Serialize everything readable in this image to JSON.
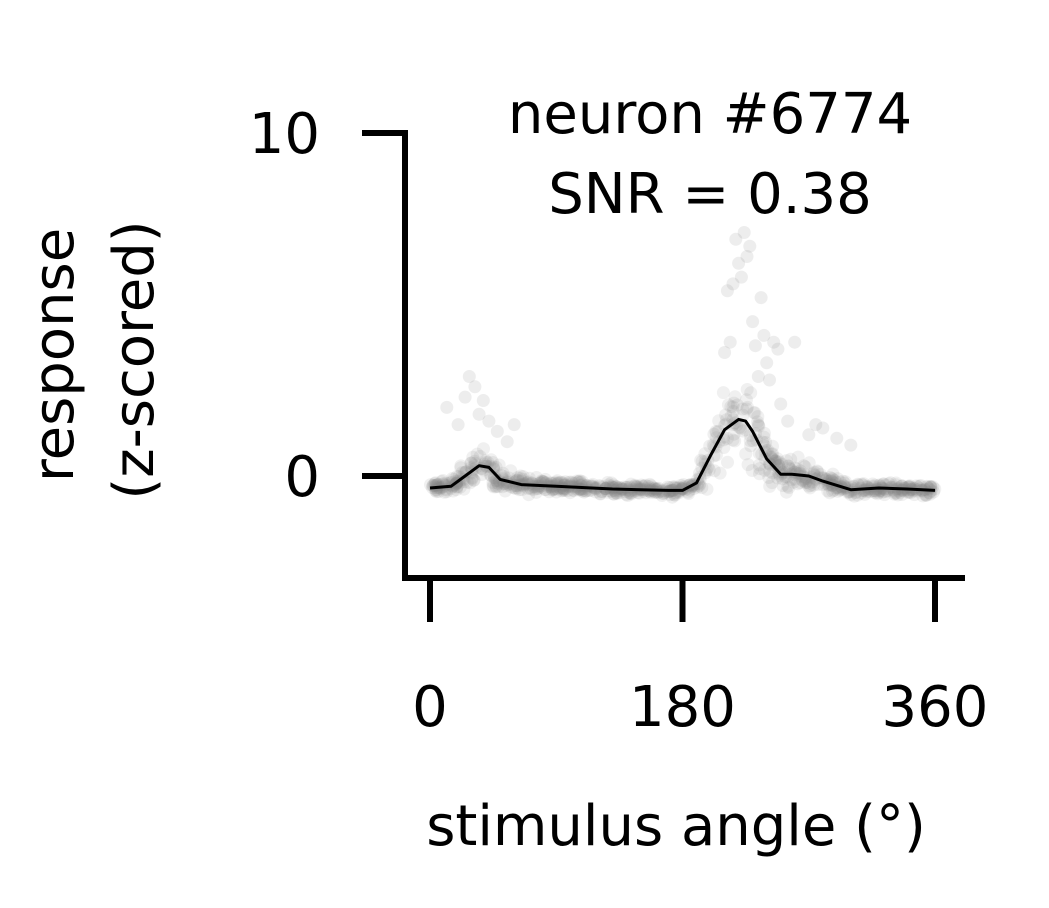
{
  "chart_data": {
    "type": "scatter",
    "title": "neuron #6774",
    "subtitle": "SNR = 0.38",
    "xlabel": "stimulus angle ($^\\circ$)",
    "xlabel_display": "stimulus angle (°)",
    "ylabel": [
      "response",
      "(z-scored)"
    ],
    "xlim": [
      -8,
      372
    ],
    "ylim": [
      -3,
      10
    ],
    "xticks": [
      0,
      180,
      360
    ],
    "xtick_labels": [
      "0",
      "180",
      "360"
    ],
    "yticks": [
      0,
      10
    ],
    "ytick_labels": [
      "0",
      "10"
    ],
    "grid": false,
    "legend": "none",
    "colors": {
      "points": "#808080",
      "curve": "#000000",
      "axes": "#000000"
    },
    "mean_curve": {
      "x": [
        0,
        15,
        25,
        35,
        42,
        50,
        65,
        90,
        130,
        170,
        180,
        190,
        200,
        210,
        220,
        225,
        230,
        240,
        250,
        258,
        270,
        280,
        300,
        320,
        340,
        360
      ],
      "y": [
        -0.35,
        -0.3,
        0.0,
        0.3,
        0.25,
        -0.1,
        -0.25,
        -0.3,
        -0.38,
        -0.42,
        -0.42,
        -0.2,
        0.6,
        1.35,
        1.65,
        1.6,
        1.3,
        0.5,
        0.05,
        0.05,
        0.0,
        -0.15,
        -0.4,
        -0.35,
        -0.38,
        -0.42
      ]
    },
    "outlier_points": {
      "x": [
        12,
        20,
        25,
        28,
        32,
        35,
        38,
        42,
        48,
        55,
        60,
        210,
        212,
        214,
        216,
        218,
        220,
        222,
        224,
        226,
        228,
        230,
        232,
        234,
        236,
        238,
        240,
        242,
        245,
        248,
        250,
        255,
        260,
        270,
        275,
        280,
        290,
        300
      ],
      "y": [
        2.0,
        1.5,
        2.3,
        2.9,
        2.6,
        1.8,
        2.2,
        1.6,
        1.3,
        1.0,
        1.5,
        3.6,
        5.4,
        3.9,
        5.6,
        6.9,
        6.2,
        5.8,
        7.1,
        6.4,
        6.7,
        4.5,
        3.8,
        2.9,
        5.2,
        4.1,
        3.3,
        2.8,
        3.9,
        3.7,
        2.1,
        1.6,
        3.9,
        1.2,
        1.5,
        1.4,
        1.1,
        0.9
      ]
    }
  }
}
